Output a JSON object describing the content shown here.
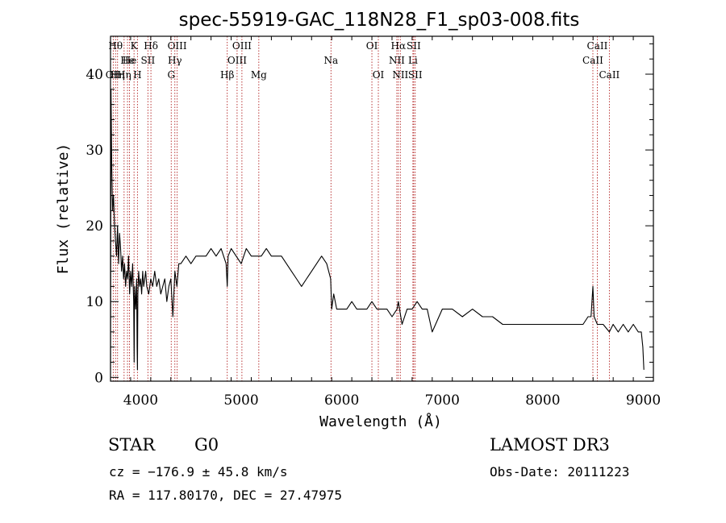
{
  "chart_data": {
    "type": "line",
    "title": "spec-55919-GAC_118N28_F1_sp03-008.fits",
    "xlabel": "Wavelength (Å)",
    "ylabel": "Flux (relative)",
    "xlim": [
      3700,
      9100
    ],
    "ylim": [
      -0.5,
      45
    ],
    "xticks": [
      4000,
      5000,
      6000,
      7000,
      8000,
      9000
    ],
    "yticks": [
      0,
      10,
      20,
      30,
      40
    ],
    "grid": false,
    "line_color": "#000000",
    "marker_color": "#b22222",
    "series": [
      {
        "x": [
          3700,
          3705,
          3712,
          3720,
          3730,
          3740,
          3750,
          3760,
          3770,
          3780,
          3790,
          3800,
          3810,
          3820,
          3830,
          3840,
          3850,
          3860,
          3870,
          3880,
          3890,
          3900,
          3910,
          3920,
          3930,
          3935,
          3940,
          3950,
          3960,
          3965,
          3968,
          3972,
          3980,
          3990,
          4000,
          4010,
          4020,
          4030,
          4040,
          4050,
          4060,
          4080,
          4100,
          4120,
          4140,
          4160,
          4180,
          4200,
          4220,
          4240,
          4260,
          4280,
          4300,
          4320,
          4340,
          4360,
          4380,
          4400,
          4450,
          4500,
          4550,
          4600,
          4650,
          4700,
          4750,
          4800,
          4850,
          4861,
          4870,
          4900,
          4950,
          5000,
          5050,
          5100,
          5150,
          5200,
          5250,
          5300,
          5350,
          5400,
          5450,
          5500,
          5550,
          5600,
          5650,
          5700,
          5750,
          5800,
          5850,
          5890,
          5900,
          5920,
          5950,
          6000,
          6050,
          6100,
          6150,
          6200,
          6250,
          6300,
          6350,
          6400,
          6450,
          6500,
          6550,
          6563,
          6600,
          6650,
          6700,
          6750,
          6800,
          6850,
          6900,
          7000,
          7100,
          7200,
          7300,
          7400,
          7500,
          7600,
          7700,
          7800,
          7900,
          8000,
          8100,
          8200,
          8300,
          8400,
          8450,
          8480,
          8498,
          8510,
          8542,
          8560,
          8600,
          8662,
          8700,
          8750,
          8800,
          8850,
          8900,
          8950,
          8980,
          8995,
          9005
        ],
        "y": [
          1,
          38,
          28,
          22,
          24,
          20,
          18,
          16,
          20,
          15,
          19,
          17,
          14,
          16,
          13,
          15,
          12,
          14,
          13,
          16,
          11,
          14,
          12,
          15,
          10,
          2,
          12,
          9,
          13,
          4,
          1,
          11,
          14,
          12,
          13,
          11,
          14,
          12,
          13,
          14,
          12,
          11,
          13,
          12,
          14,
          12,
          13,
          11,
          12,
          13,
          10,
          12,
          13,
          8,
          14,
          12,
          15,
          15,
          16,
          15,
          16,
          16,
          16,
          17,
          16,
          17,
          15,
          12,
          16,
          17,
          16,
          15,
          17,
          16,
          16,
          16,
          17,
          16,
          16,
          16,
          15,
          14,
          13,
          12,
          13,
          14,
          15,
          16,
          15,
          13,
          9,
          11,
          9,
          9,
          9,
          10,
          9,
          9,
          9,
          10,
          9,
          9,
          9,
          8,
          9,
          10,
          7,
          9,
          9,
          10,
          9,
          9,
          6,
          9,
          9,
          8,
          9,
          8,
          8,
          7,
          7,
          7,
          7,
          7,
          7,
          7,
          7,
          7,
          8,
          8,
          12,
          8,
          7,
          7,
          7,
          6,
          7,
          6,
          7,
          6,
          7,
          6,
          6,
          4,
          1
        ]
      }
    ],
    "lines": [
      {
        "wl": 3727,
        "label": "OII",
        "row": 2
      },
      {
        "wl": 3750,
        "label": "Hθ",
        "row": 0
      },
      {
        "wl": 3770,
        "label": "Hη",
        "row": 2
      },
      {
        "wl": 3835,
        "label": "Hη",
        "row": 2
      },
      {
        "wl": 3869,
        "label": "He",
        "row": 1
      },
      {
        "wl": 3889,
        "label": "He",
        "row": 1
      },
      {
        "wl": 3934,
        "label": "K",
        "row": 0
      },
      {
        "wl": 3968,
        "label": "H",
        "row": 2
      },
      {
        "wl": 4072,
        "label": "SII",
        "row": 1
      },
      {
        "wl": 4102,
        "label": "Hδ",
        "row": 0
      },
      {
        "wl": 4304,
        "label": "G",
        "row": 2
      },
      {
        "wl": 4340,
        "label": "Hγ",
        "row": 1
      },
      {
        "wl": 4363,
        "label": "OIII",
        "row": 0
      },
      {
        "wl": 4861,
        "label": "Hβ",
        "row": 2
      },
      {
        "wl": 4959,
        "label": "OIII",
        "row": 1
      },
      {
        "wl": 5007,
        "label": "OIII",
        "row": 0
      },
      {
        "wl": 5175,
        "label": "Mg",
        "row": 2
      },
      {
        "wl": 5893,
        "label": "Na",
        "row": 1
      },
      {
        "wl": 6300,
        "label": "OI",
        "row": 0
      },
      {
        "wl": 6364,
        "label": "OI",
        "row": 2
      },
      {
        "wl": 6548,
        "label": "NII",
        "row": 1
      },
      {
        "wl": 6563,
        "label": "Hα",
        "row": 0
      },
      {
        "wl": 6583,
        "label": "NII",
        "row": 2
      },
      {
        "wl": 6708,
        "label": "Li",
        "row": 1
      },
      {
        "wl": 6716,
        "label": "SII",
        "row": 0
      },
      {
        "wl": 6731,
        "label": "SII",
        "row": 2
      },
      {
        "wl": 8498,
        "label": "CaII",
        "row": 1
      },
      {
        "wl": 8542,
        "label": "CaII",
        "row": 0
      },
      {
        "wl": 8662,
        "label": "CaII",
        "row": 2
      }
    ]
  },
  "info": {
    "object_class": "STAR",
    "subclass": "G0",
    "survey": "LAMOST DR3",
    "cz": "cz = −176.9 ± 45.8 km/s",
    "obs_date": "Obs-Date: 20111223",
    "coords": "RA = 117.80170, DEC =  27.47975"
  }
}
